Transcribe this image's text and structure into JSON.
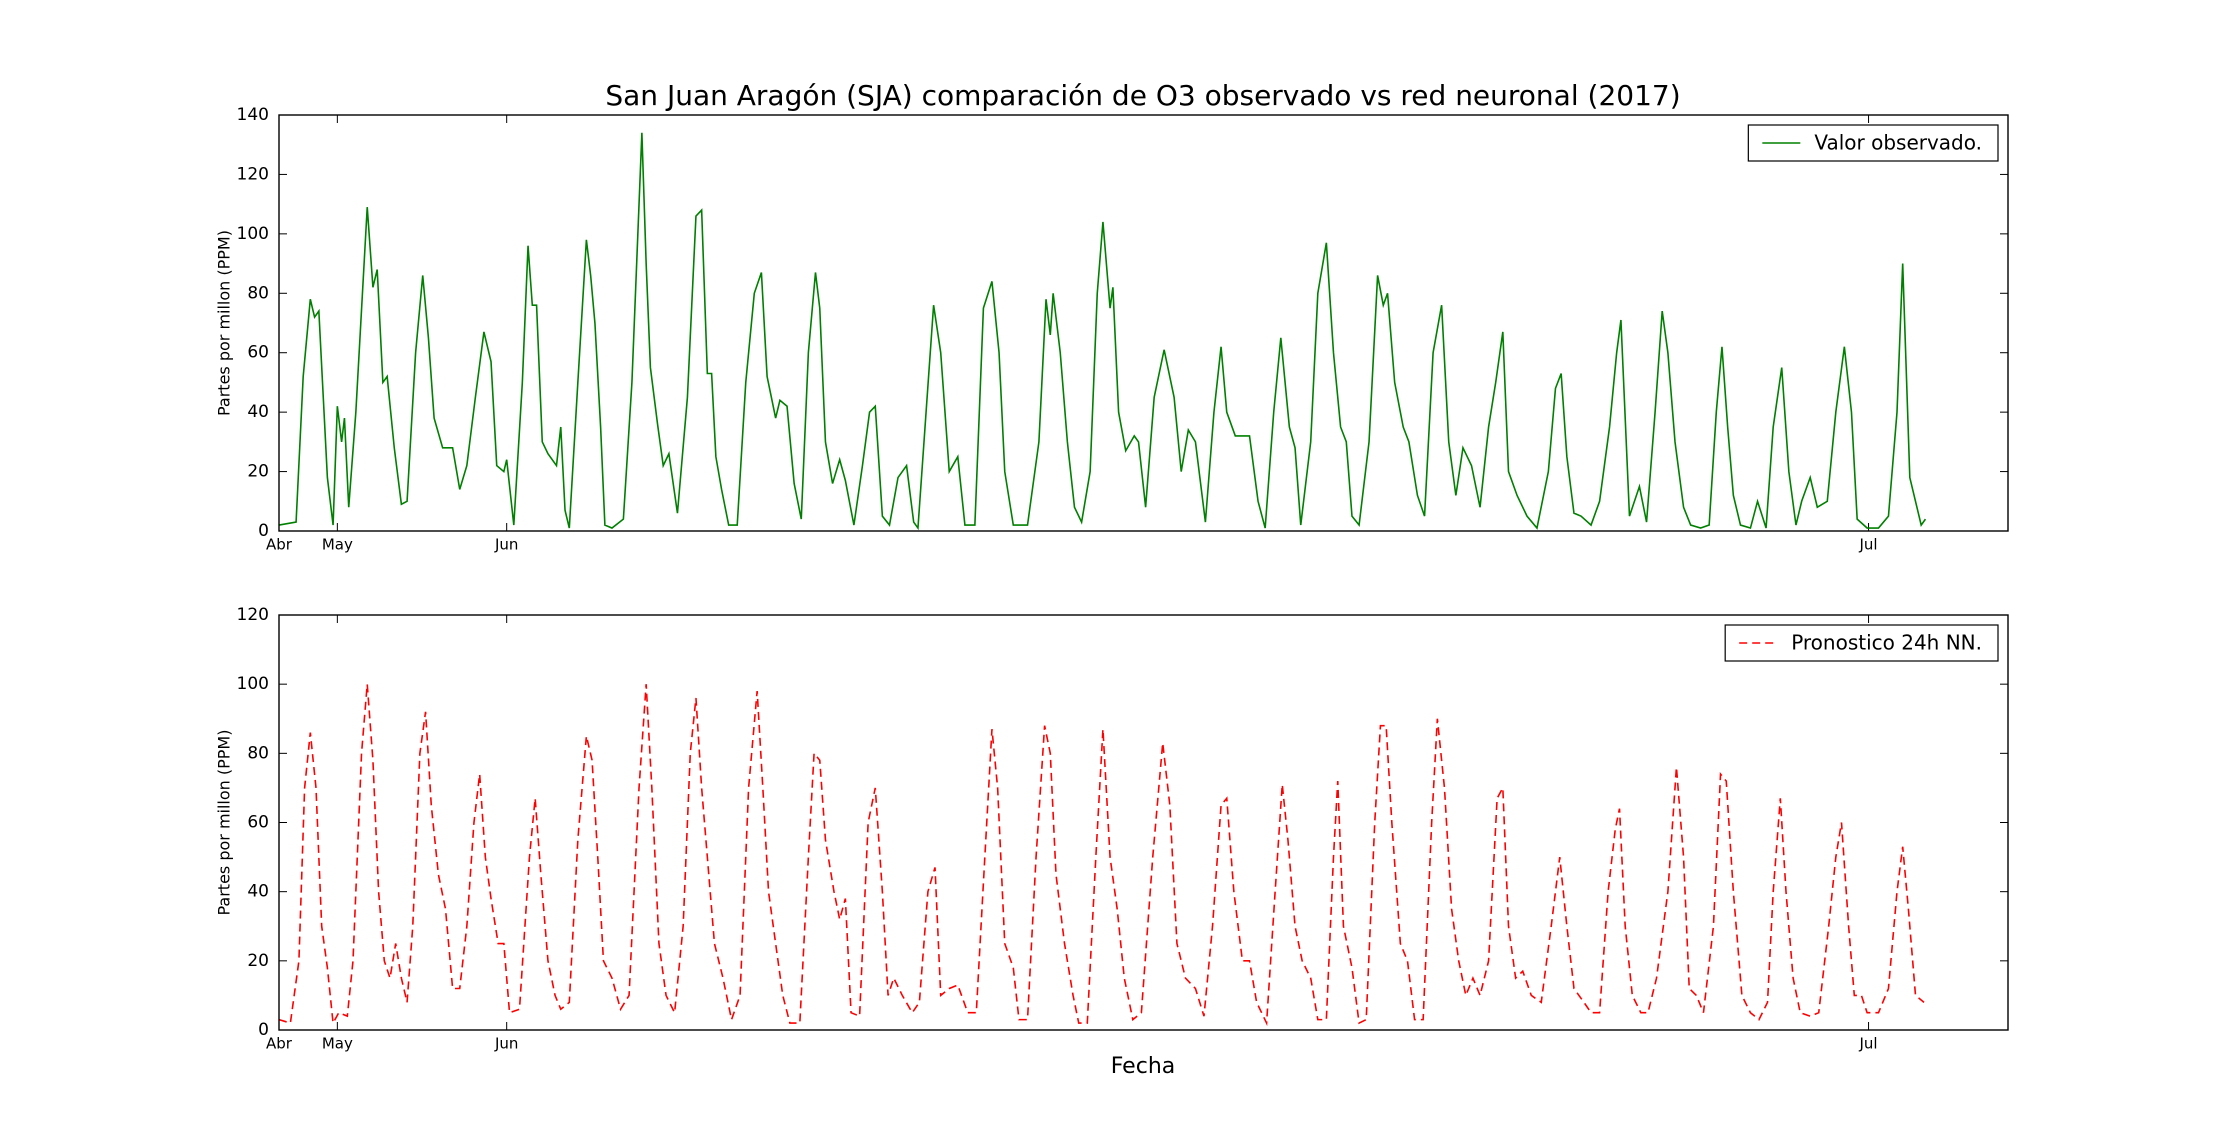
{
  "chart_data": [
    {
      "type": "line",
      "title": "San Juan Aragón (SJA) comparación de O3 observado vs red neuronal (2017)",
      "ylabel": "Partes por millon (PPM)",
      "x": [
        0,
        12,
        17,
        22,
        25,
        28,
        34,
        38,
        41,
        44,
        46,
        49,
        54,
        62,
        66,
        69,
        73,
        76,
        81,
        86,
        90,
        96,
        101,
        105,
        109,
        115,
        122,
        127,
        132,
        138,
        144,
        149,
        153,
        158,
        160,
        165,
        171,
        175,
        178,
        181,
        185,
        189,
        195,
        198,
        201,
        204,
        210,
        216,
        219,
        222,
        226,
        229,
        234,
        242,
        248,
        255,
        258,
        261,
        266,
        270,
        274,
        280,
        287,
        293,
        297,
        301,
        304,
        307,
        311,
        316,
        322,
        328,
        334,
        339,
        343,
        349,
        352,
        357,
        362,
        367,
        372,
        377,
        380,
        384,
        389,
        394,
        398,
        404,
        410,
        415,
        419,
        424,
        429,
        435,
        441,
        446,
        449,
        455,
        460,
        465,
        471,
        477,
        482,
        489,
        495,
        501,
        506,
        510,
        516,
        526,
        534,
        539,
        542,
        544,
        549,
        554,
        559,
        564,
        570,
        575,
        579,
        584,
        586,
        590,
        595,
        601,
        604,
        609,
        615,
        622,
        629,
        634,
        639,
        644,
        651,
        657,
        662,
        666,
        672,
        682,
        688,
        693,
        699,
        704,
        710,
        714,
        718,
        725,
        730,
        736,
        741,
        746,
        750,
        754,
        759,
        766,
        772,
        776,
        779,
        784,
        790,
        794,
        800,
        805,
        811,
        817,
        822,
        827,
        832,
        838,
        844,
        850,
        855,
        860,
        864,
        870,
        877,
        884,
        892,
        897,
        901,
        905,
        910,
        915,
        922,
        928,
        935,
        940,
        943,
        949,
        956,
        961,
        967,
        972,
        976,
        981,
        987,
        992,
        999,
        1005,
        1010,
        1014,
        1018,
        1022,
        1027,
        1034,
        1039,
        1045,
        1050,
        1056,
        1061,
        1066,
        1070,
        1076,
        1081,
        1088,
        1094,
        1100,
        1105,
        1109,
        1116,
        1124,
        1131,
        1137,
        1141,
        1146,
        1150,
        1154,
        1157
      ],
      "series": [
        {
          "name": "Valor observado.",
          "color": "#008000",
          "linestyle": "solid",
          "values": [
            2,
            3,
            52,
            78,
            72,
            74,
            18,
            2,
            42,
            30,
            38,
            8,
            40,
            109,
            82,
            88,
            50,
            52,
            28,
            9,
            10,
            60,
            86,
            65,
            38,
            28,
            28,
            14,
            22,
            45,
            67,
            57,
            22,
            20,
            24,
            2,
            50,
            96,
            76,
            76,
            30,
            26,
            22,
            35,
            7,
            1,
            50,
            98,
            86,
            70,
            35,
            2,
            1,
            4,
            50,
            134,
            90,
            55,
            36,
            22,
            26,
            6,
            45,
            106,
            108,
            53,
            53,
            25,
            14,
            2,
            2,
            50,
            80,
            87,
            52,
            38,
            44,
            42,
            16,
            4,
            60,
            87,
            75,
            30,
            16,
            24,
            17,
            2,
            22,
            40,
            42,
            5,
            2,
            18,
            22,
            3,
            1,
            42,
            76,
            60,
            20,
            25,
            2,
            2,
            75,
            84,
            60,
            20,
            2,
            2,
            30,
            78,
            66,
            80,
            60,
            30,
            8,
            3,
            20,
            80,
            104,
            75,
            82,
            40,
            27,
            32,
            30,
            8,
            45,
            61,
            45,
            20,
            34,
            30,
            3,
            40,
            62,
            40,
            32,
            32,
            10,
            1,
            40,
            65,
            35,
            28,
            2,
            30,
            80,
            97,
            60,
            35,
            30,
            5,
            2,
            30,
            86,
            76,
            80,
            50,
            35,
            30,
            12,
            5,
            60,
            76,
            30,
            12,
            28,
            22,
            8,
            35,
            50,
            67,
            20,
            12,
            5,
            1,
            20,
            48,
            53,
            25,
            6,
            5,
            2,
            10,
            35,
            60,
            71,
            5,
            15,
            3,
            40,
            74,
            60,
            30,
            8,
            2,
            1,
            2,
            40,
            62,
            35,
            12,
            2,
            1,
            10,
            1,
            35,
            55,
            20,
            2,
            10,
            18,
            8,
            10,
            40,
            62,
            40,
            4,
            1,
            1,
            5,
            40,
            90,
            18,
            10,
            2,
            4
          ]
        }
      ],
      "xlim": [
        0,
        1215
      ],
      "xticks": [
        {
          "value": 0,
          "label": "Abr"
        },
        {
          "value": 41,
          "label": "May"
        },
        {
          "value": 160,
          "label": "Jun"
        },
        {
          "value": 1117,
          "label": "Jul"
        }
      ],
      "ylim": [
        0,
        140
      ],
      "yticks": [
        0,
        20,
        40,
        60,
        80,
        100,
        120,
        140
      ],
      "legend": "upper right"
    },
    {
      "type": "line",
      "xlabel": "Fecha",
      "ylabel": "Partes por millon (PPM)",
      "x": [
        0,
        8,
        14,
        18,
        22,
        26,
        30,
        34,
        38,
        42,
        48,
        52,
        58,
        62,
        66,
        70,
        74,
        78,
        82,
        86,
        90,
        94,
        99,
        103,
        107,
        112,
        117,
        122,
        127,
        132,
        137,
        141,
        145,
        149,
        154,
        158,
        162,
        169,
        176,
        180,
        184,
        189,
        194,
        198,
        204,
        210,
        216,
        220,
        224,
        228,
        234,
        240,
        246,
        253,
        258,
        262,
        267,
        272,
        278,
        284,
        289,
        293,
        297,
        301,
        306,
        312,
        318,
        324,
        330,
        336,
        340,
        344,
        349,
        354,
        359,
        366,
        372,
        376,
        380,
        384,
        390,
        394,
        398,
        402,
        408,
        414,
        419,
        424,
        428,
        432,
        438,
        445,
        450,
        456,
        461,
        465,
        471,
        477,
        484,
        490,
        496,
        501,
        505,
        510,
        516,
        520,
        526,
        532,
        538,
        542,
        546,
        552,
        558,
        562,
        568,
        574,
        579,
        584,
        589,
        594,
        600,
        606,
        614,
        621,
        626,
        631,
        637,
        644,
        650,
        656,
        662,
        666,
        671,
        677,
        682,
        687,
        694,
        700,
        705,
        709,
        714,
        719,
        725,
        730,
        736,
        741,
        744,
        748,
        754,
        759,
        764,
        770,
        774,
        778,
        782,
        788,
        793,
        798,
        804,
        810,
        814,
        819,
        824,
        829,
        834,
        839,
        844,
        850,
        856,
        860,
        864,
        869,
        874,
        880,
        887,
        894,
        900,
        905,
        910,
        917,
        922,
        928,
        934,
        939,
        942,
        946,
        951,
        957,
        962,
        968,
        976,
        982,
        987,
        991,
        996,
        1001,
        1008,
        1013,
        1017,
        1022,
        1028,
        1034,
        1040,
        1046,
        1050,
        1055,
        1059,
        1064,
        1069,
        1076,
        1082,
        1089,
        1094,
        1098,
        1103,
        1107,
        1112,
        1116,
        1124,
        1131,
        1137,
        1141,
        1145,
        1150,
        1156
      ],
      "series": [
        {
          "name": "Pronostico 24h NN.",
          "color": "#ff0000",
          "linestyle": "dashed",
          "values": [
            3,
            2,
            20,
            70,
            86,
            70,
            30,
            18,
            2,
            5,
            4,
            20,
            80,
            100,
            78,
            40,
            20,
            15,
            25,
            15,
            8,
            30,
            80,
            92,
            65,
            45,
            35,
            12,
            12,
            30,
            60,
            74,
            50,
            38,
            25,
            25,
            5,
            6,
            50,
            67,
            45,
            20,
            10,
            6,
            8,
            55,
            85,
            78,
            50,
            20,
            15,
            6,
            10,
            70,
            100,
            70,
            25,
            10,
            5,
            30,
            80,
            96,
            70,
            50,
            25,
            15,
            3,
            10,
            70,
            98,
            70,
            40,
            25,
            10,
            2,
            2,
            50,
            80,
            78,
            55,
            40,
            32,
            38,
            5,
            4,
            60,
            70,
            40,
            10,
            15,
            10,
            5,
            8,
            40,
            47,
            10,
            12,
            13,
            5,
            5,
            50,
            87,
            70,
            25,
            18,
            3,
            3,
            50,
            88,
            80,
            45,
            25,
            10,
            2,
            2,
            50,
            87,
            50,
            35,
            15,
            3,
            5,
            50,
            83,
            65,
            25,
            15,
            12,
            4,
            30,
            65,
            67,
            40,
            20,
            20,
            8,
            2,
            40,
            71,
            55,
            30,
            20,
            15,
            3,
            3,
            50,
            72,
            30,
            18,
            2,
            3,
            60,
            88,
            88,
            60,
            25,
            20,
            3,
            3,
            60,
            90,
            70,
            35,
            20,
            10,
            15,
            10,
            20,
            67,
            70,
            30,
            15,
            17,
            10,
            8,
            30,
            50,
            30,
            12,
            8,
            5,
            5,
            40,
            58,
            64,
            30,
            10,
            5,
            5,
            15,
            40,
            76,
            50,
            12,
            10,
            5,
            30,
            74,
            72,
            40,
            10,
            5,
            3,
            8,
            40,
            67,
            40,
            15,
            5,
            4,
            5,
            30,
            50,
            60,
            30,
            10,
            10,
            5,
            5,
            12,
            40,
            53,
            35,
            10,
            8
          ]
        }
      ],
      "xlim": [
        0,
        1215
      ],
      "xticks": [
        {
          "value": 0,
          "label": "Abr"
        },
        {
          "value": 41,
          "label": "May"
        },
        {
          "value": 160,
          "label": "Jun"
        },
        {
          "value": 1117,
          "label": "Jul"
        }
      ],
      "ylim": [
        0,
        120
      ],
      "yticks": [
        0,
        20,
        40,
        60,
        80,
        100,
        120
      ],
      "legend": "upper right"
    }
  ]
}
